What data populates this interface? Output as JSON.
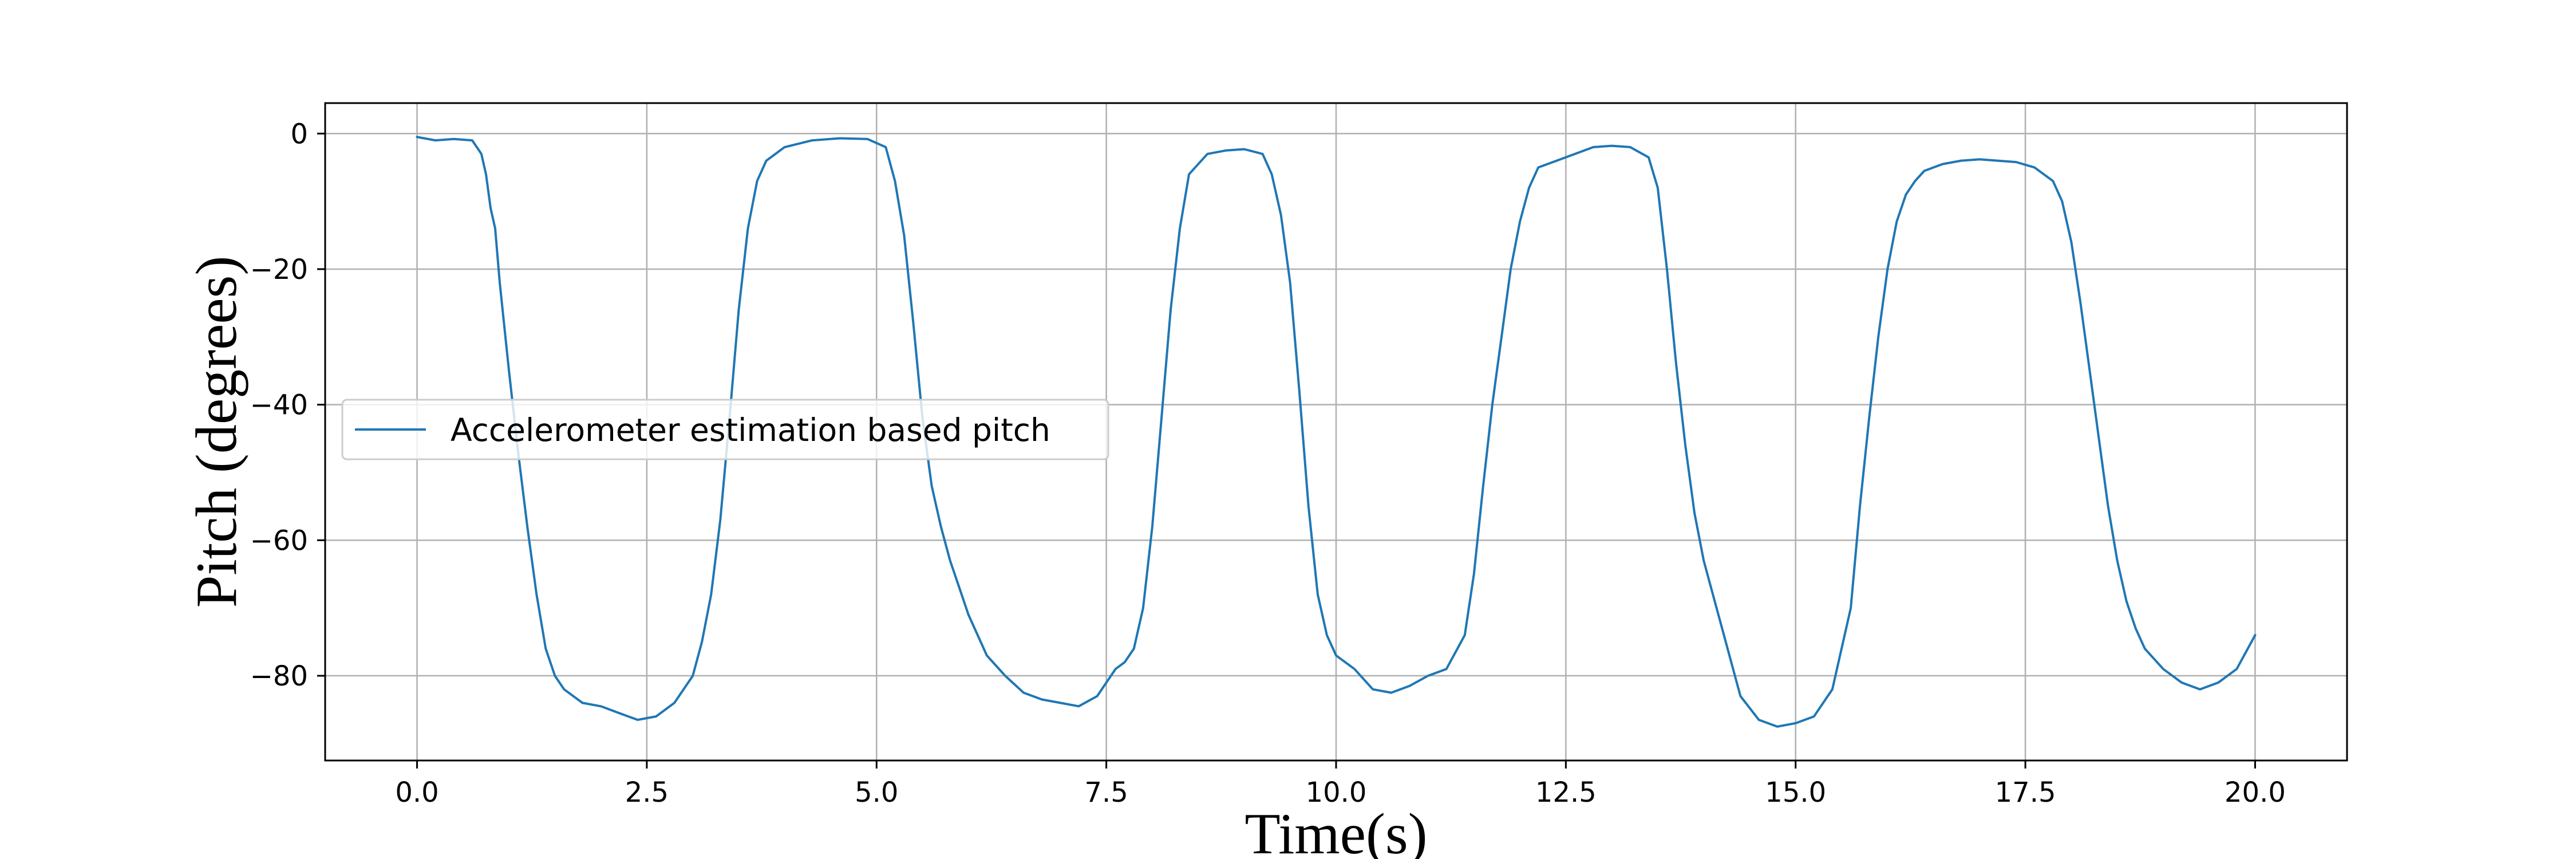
{
  "chart_data": {
    "type": "line",
    "title": "",
    "xlabel": "Time(s)",
    "ylabel": "Pitch (degrees)",
    "xlim": [
      -1.0,
      21.0
    ],
    "ylim": [
      -92.5,
      4.5
    ],
    "xticks": [
      0.0,
      2.5,
      5.0,
      7.5,
      10.0,
      12.5,
      15.0,
      17.5,
      20.0
    ],
    "xtick_labels": [
      "0.0",
      "2.5",
      "5.0",
      "7.5",
      "10.0",
      "12.5",
      "15.0",
      "17.5",
      "20.0"
    ],
    "yticks": [
      0,
      -20,
      -40,
      -60,
      -80
    ],
    "ytick_labels": [
      "0",
      "−20",
      "−40",
      "−60",
      "−80"
    ],
    "grid": true,
    "legend": {
      "placement": "center-left",
      "entries": [
        "Accelerometer estimation based pitch"
      ]
    },
    "color": "#1f77b4",
    "series": [
      {
        "name": "Accelerometer estimation based pitch",
        "x": [
          0.0,
          0.2,
          0.4,
          0.6,
          0.7,
          0.75,
          0.8,
          0.85,
          0.9,
          1.0,
          1.1,
          1.2,
          1.3,
          1.4,
          1.5,
          1.6,
          1.7,
          1.8,
          2.0,
          2.2,
          2.4,
          2.6,
          2.8,
          3.0,
          3.1,
          3.2,
          3.3,
          3.4,
          3.5,
          3.6,
          3.7,
          3.8,
          4.0,
          4.3,
          4.6,
          4.9,
          5.1,
          5.2,
          5.3,
          5.4,
          5.5,
          5.6,
          5.7,
          5.8,
          5.9,
          6.0,
          6.2,
          6.4,
          6.6,
          6.8,
          7.0,
          7.2,
          7.4,
          7.6,
          7.7,
          7.8,
          7.9,
          8.0,
          8.1,
          8.2,
          8.3,
          8.4,
          8.6,
          8.8,
          9.0,
          9.2,
          9.3,
          9.4,
          9.5,
          9.6,
          9.7,
          9.8,
          9.9,
          10.0,
          10.2,
          10.4,
          10.6,
          10.8,
          11.0,
          11.2,
          11.4,
          11.5,
          11.6,
          11.7,
          11.8,
          11.9,
          12.0,
          12.1,
          12.2,
          12.4,
          12.6,
          12.8,
          13.0,
          13.2,
          13.4,
          13.5,
          13.6,
          13.7,
          13.8,
          13.9,
          14.0,
          14.1,
          14.2,
          14.3,
          14.4,
          14.6,
          14.8,
          15.0,
          15.2,
          15.4,
          15.6,
          15.7,
          15.8,
          15.9,
          16.0,
          16.1,
          16.2,
          16.3,
          16.4,
          16.6,
          16.8,
          17.0,
          17.2,
          17.4,
          17.6,
          17.8,
          17.9,
          18.0,
          18.1,
          18.2,
          18.3,
          18.4,
          18.5,
          18.6,
          18.7,
          18.8,
          19.0,
          19.2,
          19.4,
          19.6,
          19.8,
          20.0
        ],
        "y": [
          -0.5,
          -1.0,
          -0.8,
          -1.0,
          -3.0,
          -6.0,
          -11.0,
          -14.0,
          -22.0,
          -35.0,
          -47.0,
          -58.0,
          -68.0,
          -76.0,
          -80.0,
          -82.0,
          -83.0,
          -84.0,
          -84.5,
          -85.5,
          -86.5,
          -86.0,
          -84.0,
          -80.0,
          -75.0,
          -68.0,
          -57.0,
          -42.0,
          -26.0,
          -14.0,
          -7.0,
          -4.0,
          -2.0,
          -1.0,
          -0.7,
          -0.8,
          -2.0,
          -7.0,
          -15.0,
          -28.0,
          -42.0,
          -52.0,
          -58.0,
          -63.0,
          -67.0,
          -71.0,
          -77.0,
          -80.0,
          -82.5,
          -83.5,
          -84.0,
          -84.5,
          -83.0,
          -79.0,
          -78.0,
          -76.0,
          -70.0,
          -58.0,
          -42.0,
          -26.0,
          -14.0,
          -6.0,
          -3.0,
          -2.5,
          -2.3,
          -3.0,
          -6.0,
          -12.0,
          -22.0,
          -38.0,
          -55.0,
          -68.0,
          -74.0,
          -77.0,
          -79.0,
          -82.0,
          -82.5,
          -81.5,
          -80.0,
          -79.0,
          -74.0,
          -65.0,
          -52.0,
          -40.0,
          -30.0,
          -20.0,
          -13.0,
          -8.0,
          -5.0,
          -4.0,
          -3.0,
          -2.0,
          -1.8,
          -2.0,
          -3.5,
          -8.0,
          -20.0,
          -34.0,
          -46.0,
          -56.0,
          -63.0,
          -68.0,
          -73.0,
          -78.0,
          -83.0,
          -86.5,
          -87.5,
          -87.0,
          -86.0,
          -82.0,
          -70.0,
          -55.0,
          -42.0,
          -30.0,
          -20.0,
          -13.0,
          -9.0,
          -7.0,
          -5.5,
          -4.5,
          -4.0,
          -3.8,
          -4.0,
          -4.2,
          -5.0,
          -7.0,
          -10.0,
          -16.0,
          -25.0,
          -35.0,
          -45.0,
          -55.0,
          -63.0,
          -69.0,
          -73.0,
          -76.0,
          -79.0,
          -81.0,
          -82.0,
          -81.0,
          -79.0,
          -74.0
        ]
      }
    ]
  }
}
